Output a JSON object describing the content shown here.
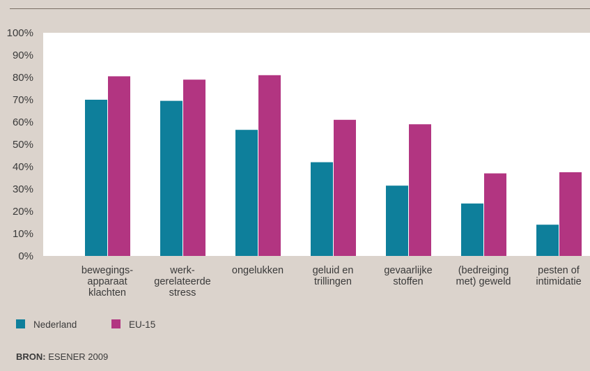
{
  "source": {
    "label": "BRON:",
    "text": "ESENER 2009"
  },
  "colors": {
    "nederland": "#0e7f9b",
    "eu15": "#b23581",
    "plot_bg": "#ffffff",
    "page_bg": "#dbd3cc"
  },
  "chart_data": {
    "type": "bar",
    "title": "",
    "xlabel": "",
    "ylabel": "",
    "ylim": [
      0,
      100
    ],
    "y_ticks": [
      "0%",
      "10%",
      "20%",
      "30%",
      "40%",
      "50%",
      "60%",
      "70%",
      "80%",
      "90%",
      "100%"
    ],
    "grid": false,
    "legend_position": "bottom-left",
    "categories": [
      [
        "bewegings-",
        "apparaat",
        "klachten"
      ],
      [
        "werk-",
        "gerelateerde",
        "stress"
      ],
      [
        "ongelukken"
      ],
      [
        "geluid en",
        "trillingen"
      ],
      [
        "gevaarlijke",
        "stoffen"
      ],
      [
        "(bedreiging",
        "met) geweld"
      ],
      [
        "pesten of",
        "intimidatie"
      ]
    ],
    "series": [
      {
        "name": "Nederland",
        "values": [
          70,
          69.5,
          56.5,
          42,
          31.5,
          23.5,
          14
        ]
      },
      {
        "name": "EU-15",
        "values": [
          80.5,
          79,
          81,
          61,
          59,
          37,
          37.5
        ]
      }
    ]
  }
}
